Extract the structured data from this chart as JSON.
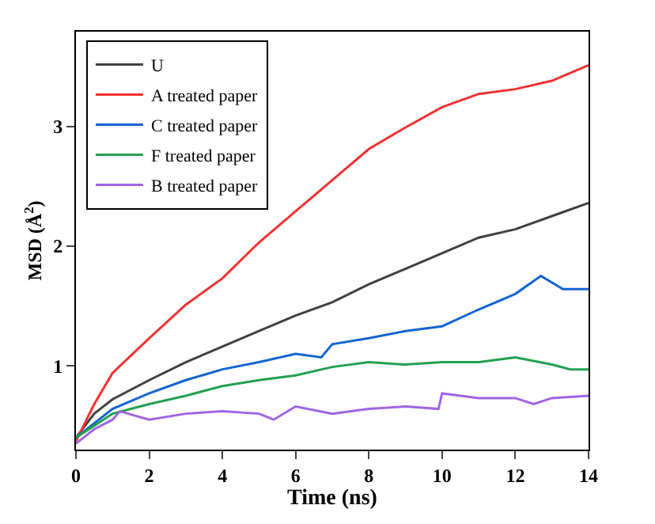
{
  "chart_data": {
    "type": "line",
    "xlabel": "Time (ns)",
    "ylabel": "MSD (Å$^{2}$)",
    "xlim": [
      0,
      14
    ],
    "ylim": [
      0.3,
      3.79
    ],
    "xticks": [
      0,
      2,
      4,
      6,
      8,
      10,
      12,
      14
    ],
    "yticks": [
      1,
      2,
      3
    ],
    "legend": "top left",
    "marker": "none",
    "line_style": "solid",
    "x": [
      0,
      0.5,
      1,
      2,
      3,
      4,
      5,
      6,
      7,
      8,
      9,
      10,
      11,
      12,
      13,
      14
    ],
    "series": [
      {
        "name": "U",
        "color": "#404040",
        "values": [
          0.4,
          0.6,
          0.72,
          0.88,
          1.03,
          1.16,
          1.29,
          1.42,
          1.53,
          1.68,
          1.81,
          1.94,
          2.07,
          2.14,
          2.25,
          2.36
        ]
      },
      {
        "name": "A treated paper",
        "color": "#f03232",
        "values": [
          0.37,
          0.68,
          0.94,
          1.23,
          1.51,
          1.73,
          2.03,
          2.29,
          2.55,
          2.81,
          2.99,
          3.16,
          3.27,
          3.31,
          3.38,
          3.51
        ]
      },
      {
        "name": "C treated paper",
        "color": "#1464d2",
        "x": [
          0,
          1,
          2,
          3,
          4,
          5,
          6,
          6.7,
          7,
          8,
          9,
          10,
          11,
          12,
          12.7,
          13.3,
          14
        ],
        "values": [
          0.4,
          0.64,
          0.77,
          0.88,
          0.97,
          1.03,
          1.1,
          1.07,
          1.18,
          1.23,
          1.29,
          1.33,
          1.47,
          1.6,
          1.75,
          1.64,
          1.64
        ]
      },
      {
        "name": "F treated paper",
        "color": "#23a050",
        "x": [
          0,
          1,
          2,
          3,
          4,
          5,
          6,
          7,
          8,
          9,
          10,
          11,
          12,
          13,
          13.5,
          14
        ],
        "values": [
          0.4,
          0.6,
          0.68,
          0.75,
          0.83,
          0.88,
          0.92,
          0.99,
          1.03,
          1.01,
          1.03,
          1.03,
          1.07,
          1.01,
          0.97,
          0.97
        ]
      },
      {
        "name": "B treated paper",
        "color": "#a064e6",
        "x": [
          0,
          0.5,
          1,
          1.2,
          2,
          3,
          4,
          5,
          5.4,
          6,
          7,
          8,
          9,
          9.9,
          10,
          11,
          12,
          12.5,
          13,
          14
        ],
        "values": [
          0.35,
          0.47,
          0.55,
          0.62,
          0.55,
          0.6,
          0.62,
          0.6,
          0.55,
          0.66,
          0.6,
          0.64,
          0.66,
          0.64,
          0.77,
          0.73,
          0.73,
          0.68,
          0.73,
          0.75
        ]
      }
    ]
  }
}
